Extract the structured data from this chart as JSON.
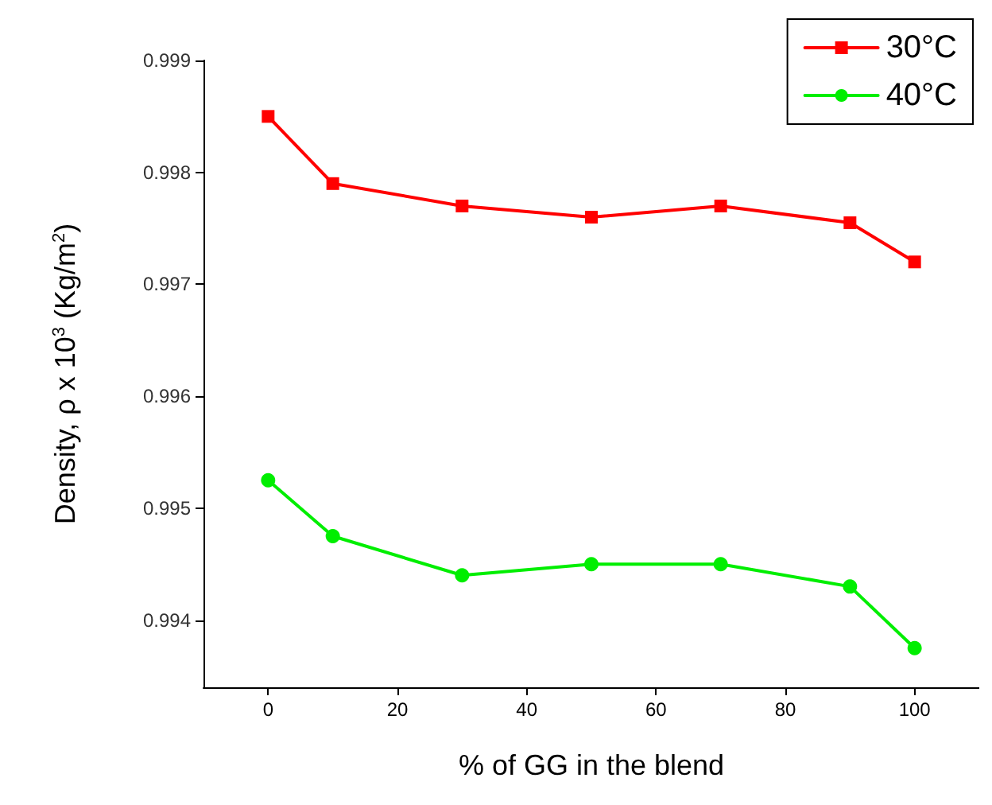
{
  "chart_data": {
    "type": "line",
    "xlabel": "% of GG in the blend",
    "ylabel": "Density, ρ x 10$^{3}$ (Kg/m$^{2}$)",
    "x": [
      0,
      10,
      30,
      50,
      70,
      90,
      100
    ],
    "series": [
      {
        "name": "30°C",
        "color": "#ff0000",
        "marker": "square",
        "values": [
          0.9985,
          0.9979,
          0.9977,
          0.9976,
          0.9977,
          0.99755,
          0.9972
        ]
      },
      {
        "name": "40°C",
        "color": "#00ee00",
        "marker": "circle",
        "values": [
          0.99525,
          0.99475,
          0.9944,
          0.9945,
          0.9945,
          0.9943,
          0.99375
        ]
      }
    ],
    "xlim": [
      -10,
      110
    ],
    "xticks": [
      0,
      20,
      40,
      60,
      80,
      100
    ],
    "ylim": [
      0.9934,
      0.999
    ],
    "yticks": [
      0.994,
      0.995,
      0.996,
      0.997,
      0.998,
      0.999
    ],
    "grid": false,
    "legend": "top right",
    "line_style": "solid"
  }
}
